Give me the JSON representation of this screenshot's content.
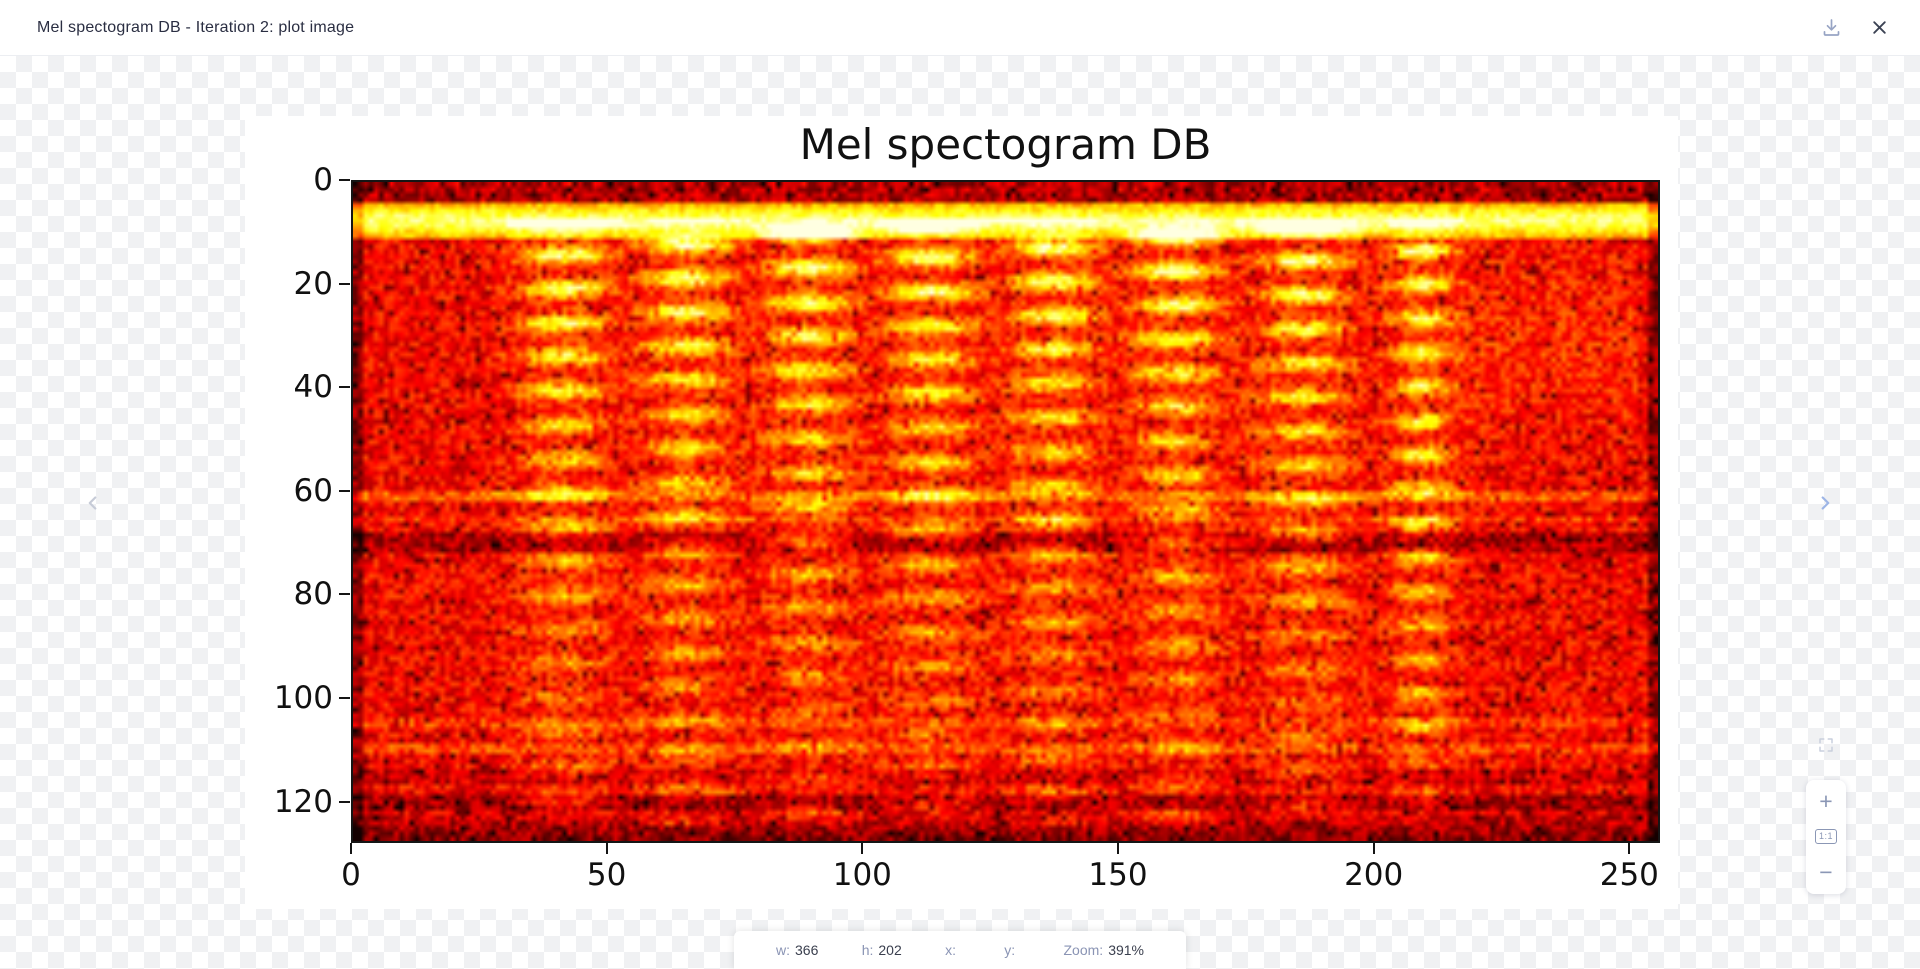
{
  "header": {
    "title": "Mel spectogram DB - Iteration 2: plot image"
  },
  "controls": {
    "zoom_in": "+",
    "actual_size": "1:1",
    "zoom_out": "−"
  },
  "statusbar": {
    "items": [
      {
        "label": "w:",
        "value": "366"
      },
      {
        "label": "h:",
        "value": "202"
      },
      {
        "label": "x:",
        "value": ""
      },
      {
        "label": "y:",
        "value": ""
      },
      {
        "label": "Zoom:",
        "value": "391%"
      }
    ]
  },
  "chart_data": {
    "type": "heatmap",
    "title": "Mel spectogram DB",
    "xlabel": "",
    "ylabel": "",
    "x_ticks": [
      0,
      50,
      100,
      150,
      200,
      250
    ],
    "y_ticks": [
      0,
      20,
      40,
      60,
      80,
      100,
      120
    ],
    "x_range": [
      0,
      256
    ],
    "y_range": [
      0,
      128
    ],
    "origin": "upper",
    "colormap": "hot",
    "grid": false,
    "legend": false,
    "onset_columns": [
      41,
      65,
      89,
      113,
      137,
      161,
      186,
      209
    ],
    "bright_rows": [
      [
        4,
        10
      ],
      [
        60,
        61
      ],
      [
        65,
        65
      ],
      [
        104,
        105
      ],
      [
        109,
        110
      ]
    ],
    "dark_rows": [
      [
        68,
        71
      ],
      [
        114,
        116
      ],
      [
        119,
        121
      ],
      [
        122,
        127
      ]
    ],
    "description": "Mel-scale spectrogram in dB with 'hot' colormap: noisy red background, bright horizontal band near mel bins 4-10, eight vertical harmonic onset stacks fading with depth, bright resonance lines near bins 60, 65, 104, 110 and darker bands near bins 68-71 and below 114."
  }
}
